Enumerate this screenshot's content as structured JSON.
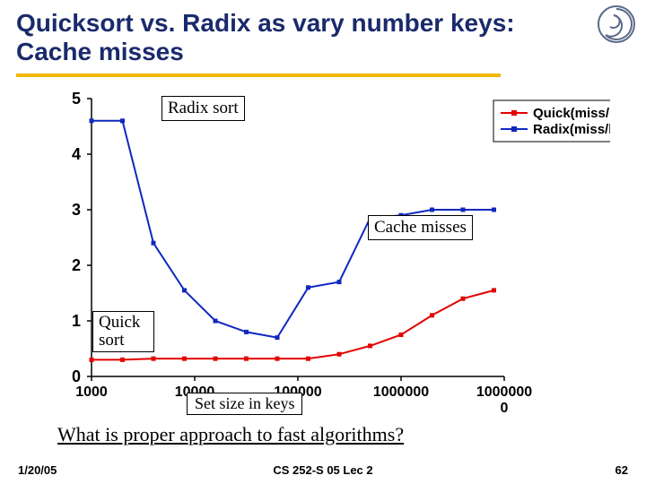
{
  "title_line1": "Quicksort vs. Radix as vary number keys:",
  "title_line2": "Cache misses",
  "logo_color": "#5a6a8a",
  "underline_color": "#f2b705",
  "chart": {
    "type": "line-scatter-logx",
    "xlim_log10": [
      3,
      7
    ],
    "ylim": [
      0,
      5
    ],
    "ytick_step": 1,
    "x_tick_labels": [
      "1000",
      "10000",
      "100000",
      "1000000",
      "10000000"
    ],
    "background_color": "#ffffff",
    "axis_color": "#000000",
    "marker_size": 5,
    "line_width": 2,
    "series": {
      "quick": {
        "label": "Quick(miss/key)",
        "color": "#e40000",
        "x_log10": [
          3.0,
          3.3,
          3.6,
          3.9,
          4.2,
          4.5,
          4.8,
          5.1,
          5.4,
          5.7,
          6.0,
          6.3,
          6.6,
          6.9
        ],
        "y": [
          0.3,
          0.3,
          0.32,
          0.32,
          0.32,
          0.32,
          0.32,
          0.32,
          0.4,
          0.55,
          0.75,
          1.1,
          1.4,
          1.55
        ]
      },
      "radix": {
        "label": "Radix(miss/key)",
        "color": "#1028c0",
        "x_log10": [
          3.0,
          3.3,
          3.6,
          3.9,
          4.2,
          4.5,
          4.8,
          5.1,
          5.4,
          5.7,
          6.0,
          6.3,
          6.6,
          6.9
        ],
        "y": [
          4.6,
          4.6,
          2.4,
          1.55,
          1.0,
          0.8,
          0.7,
          1.6,
          1.7,
          2.85,
          2.9,
          3.0,
          3.0,
          3.0
        ]
      }
    },
    "legend": {
      "border_color": "#000000",
      "bg": "#ffffff",
      "font_size": 15
    }
  },
  "annotations": {
    "radix_label": "Radix sort",
    "quick_label": "Quick sort",
    "cache_label": "Cache misses",
    "xaxis_label": "Set size in keys"
  },
  "question": "What is proper approach to fast algorithms?",
  "footer": {
    "date": "1/20/05",
    "mid": "CS 252-S 05 Lec 2",
    "num": "62"
  }
}
